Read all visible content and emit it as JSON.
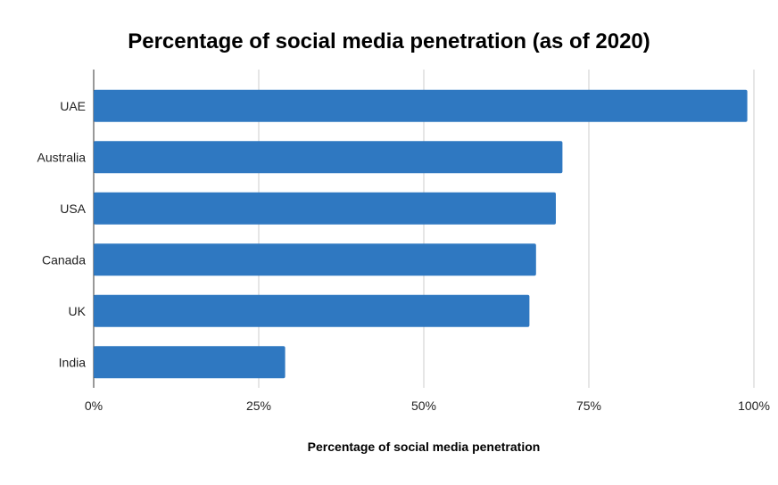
{
  "chart_data": {
    "type": "bar",
    "orientation": "horizontal",
    "title": "Percentage of social media penetration (as of 2020)",
    "xlabel": "Percentage of social media penetration",
    "ylabel": "",
    "categories": [
      "UAE",
      "Australia",
      "USA",
      "Canada",
      "UK",
      "India"
    ],
    "values": [
      99,
      71,
      70,
      67,
      66,
      29
    ],
    "xlim": [
      0,
      100
    ],
    "ticks": [
      0,
      25,
      50,
      75,
      100
    ],
    "tick_labels": [
      "0%",
      "25%",
      "50%",
      "75%",
      "100%"
    ],
    "grid": "vertical",
    "legend": "none",
    "bar_color": "#2f78c1"
  }
}
